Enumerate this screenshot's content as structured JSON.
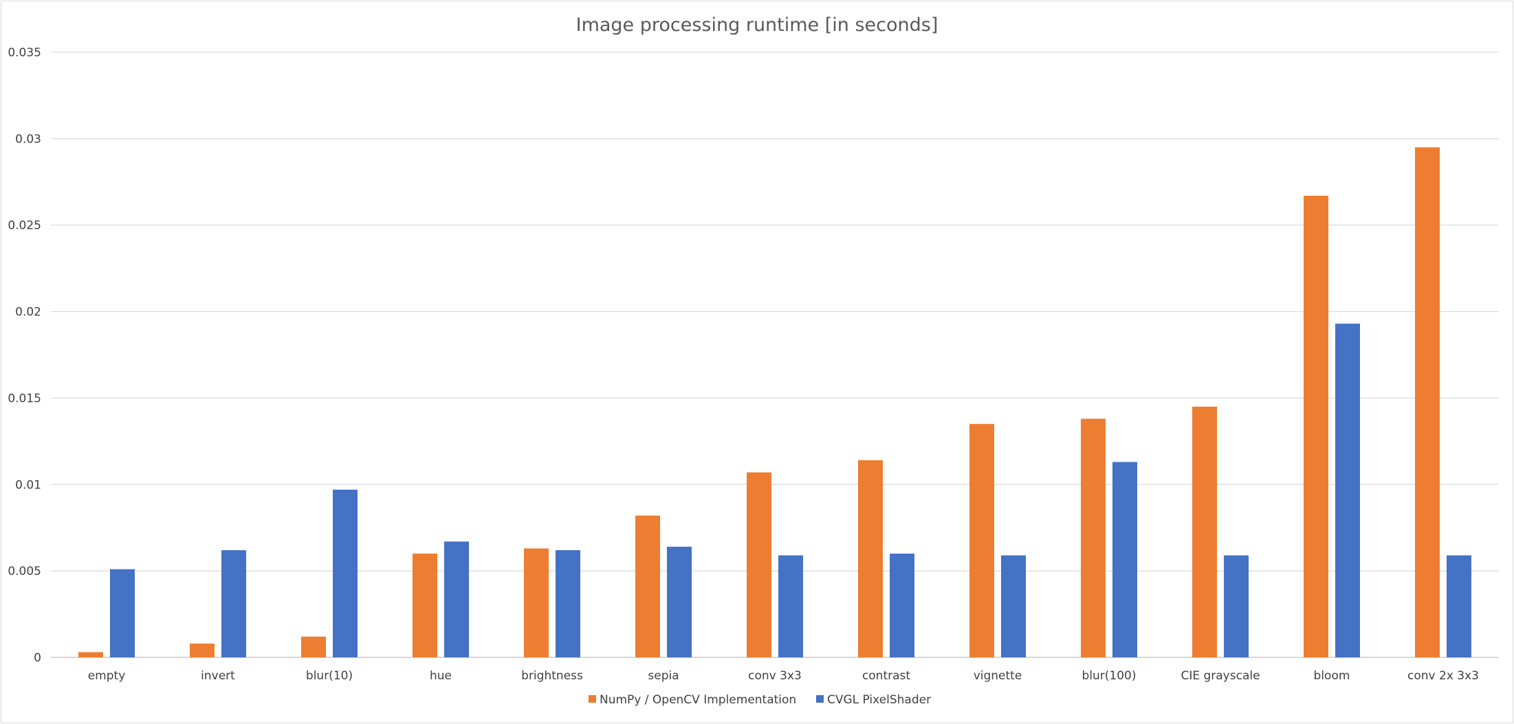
{
  "chart_data": {
    "type": "bar",
    "title": "Image processing runtime [in seconds]",
    "xlabel": "",
    "ylabel": "",
    "categories": [
      "empty",
      "invert",
      "blur(10)",
      "hue",
      "brightness",
      "sepia",
      "conv 3x3",
      "contrast",
      "vignette",
      "blur(100)",
      "CIE grayscale",
      "bloom",
      "conv 2x 3x3"
    ],
    "series": [
      {
        "name": "NumPy / OpenCV Implementation",
        "color": "#ed7d31",
        "values": [
          0.0003,
          0.0008,
          0.0012,
          0.006,
          0.0063,
          0.0082,
          0.0107,
          0.0114,
          0.0135,
          0.0138,
          0.0145,
          0.0267,
          0.0295
        ]
      },
      {
        "name": "CVGL PixelShader",
        "color": "#4472c4",
        "values": [
          0.0051,
          0.0062,
          0.0097,
          0.0067,
          0.0062,
          0.0064,
          0.0059,
          0.006,
          0.0059,
          0.0113,
          0.0059,
          0.0193,
          0.0059
        ]
      }
    ],
    "ylim": [
      0,
      0.035
    ],
    "yticks": [
      "0",
      "0.005",
      "0.01",
      "0.015",
      "0.02",
      "0.025",
      "0.03",
      "0.035"
    ],
    "ytick_values": [
      0,
      0.005,
      0.01,
      0.015,
      0.02,
      0.025,
      0.03,
      0.035
    ],
    "grid": true,
    "legend_position": "bottom"
  }
}
